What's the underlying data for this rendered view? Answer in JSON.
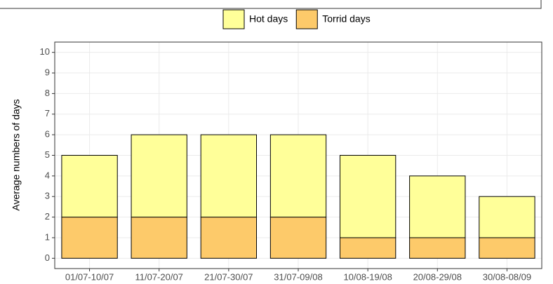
{
  "chart_data": {
    "type": "stacked_bar",
    "y_label": "Average numbers of days",
    "categories": [
      "01/07-10/07",
      "11/07-20/07",
      "21/07-30/07",
      "31/07-09/08",
      "10/08-19/08",
      "20/08-29/08",
      "30/08-08/09"
    ],
    "series": [
      {
        "name": "Hot days",
        "color": "#ffff99",
        "values": [
          3,
          4,
          4,
          4,
          4,
          3,
          2
        ]
      },
      {
        "name": "Torrid days",
        "color": "#fdca6a",
        "values": [
          2,
          2,
          2,
          2,
          1,
          1,
          1
        ]
      }
    ],
    "ylim": [
      -0.5,
      10.5
    ],
    "yticks": [
      0,
      1,
      2,
      3,
      4,
      5,
      6,
      7,
      8,
      9,
      10
    ],
    "grid": true,
    "legend": "top"
  }
}
